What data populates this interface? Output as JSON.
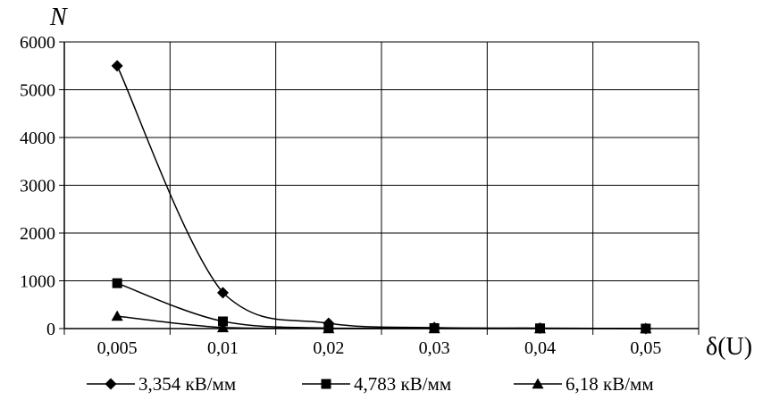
{
  "chart_data": {
    "type": "line",
    "categories": [
      "0,005",
      "0,01",
      "0,02",
      "0,03",
      "0,04",
      "0,05"
    ],
    "ylabel": "N",
    "xlabel": "δ(U)",
    "ylim": [
      0,
      6000
    ],
    "yticks": [
      "0",
      "1000",
      "2000",
      "3000",
      "4000",
      "5000",
      "6000"
    ],
    "grid": true,
    "legend_position": "bottom",
    "series": [
      {
        "name": "3,354 кВ/мм",
        "marker": "diamond",
        "values": [
          5500,
          750,
          110,
          20,
          10,
          0
        ]
      },
      {
        "name": "4,783 кВ/мм",
        "marker": "square",
        "values": [
          950,
          150,
          10,
          10,
          5,
          0
        ]
      },
      {
        "name": "6,18 кВ/мм",
        "marker": "triangle",
        "values": [
          260,
          20,
          0,
          0,
          0,
          0
        ]
      }
    ]
  }
}
